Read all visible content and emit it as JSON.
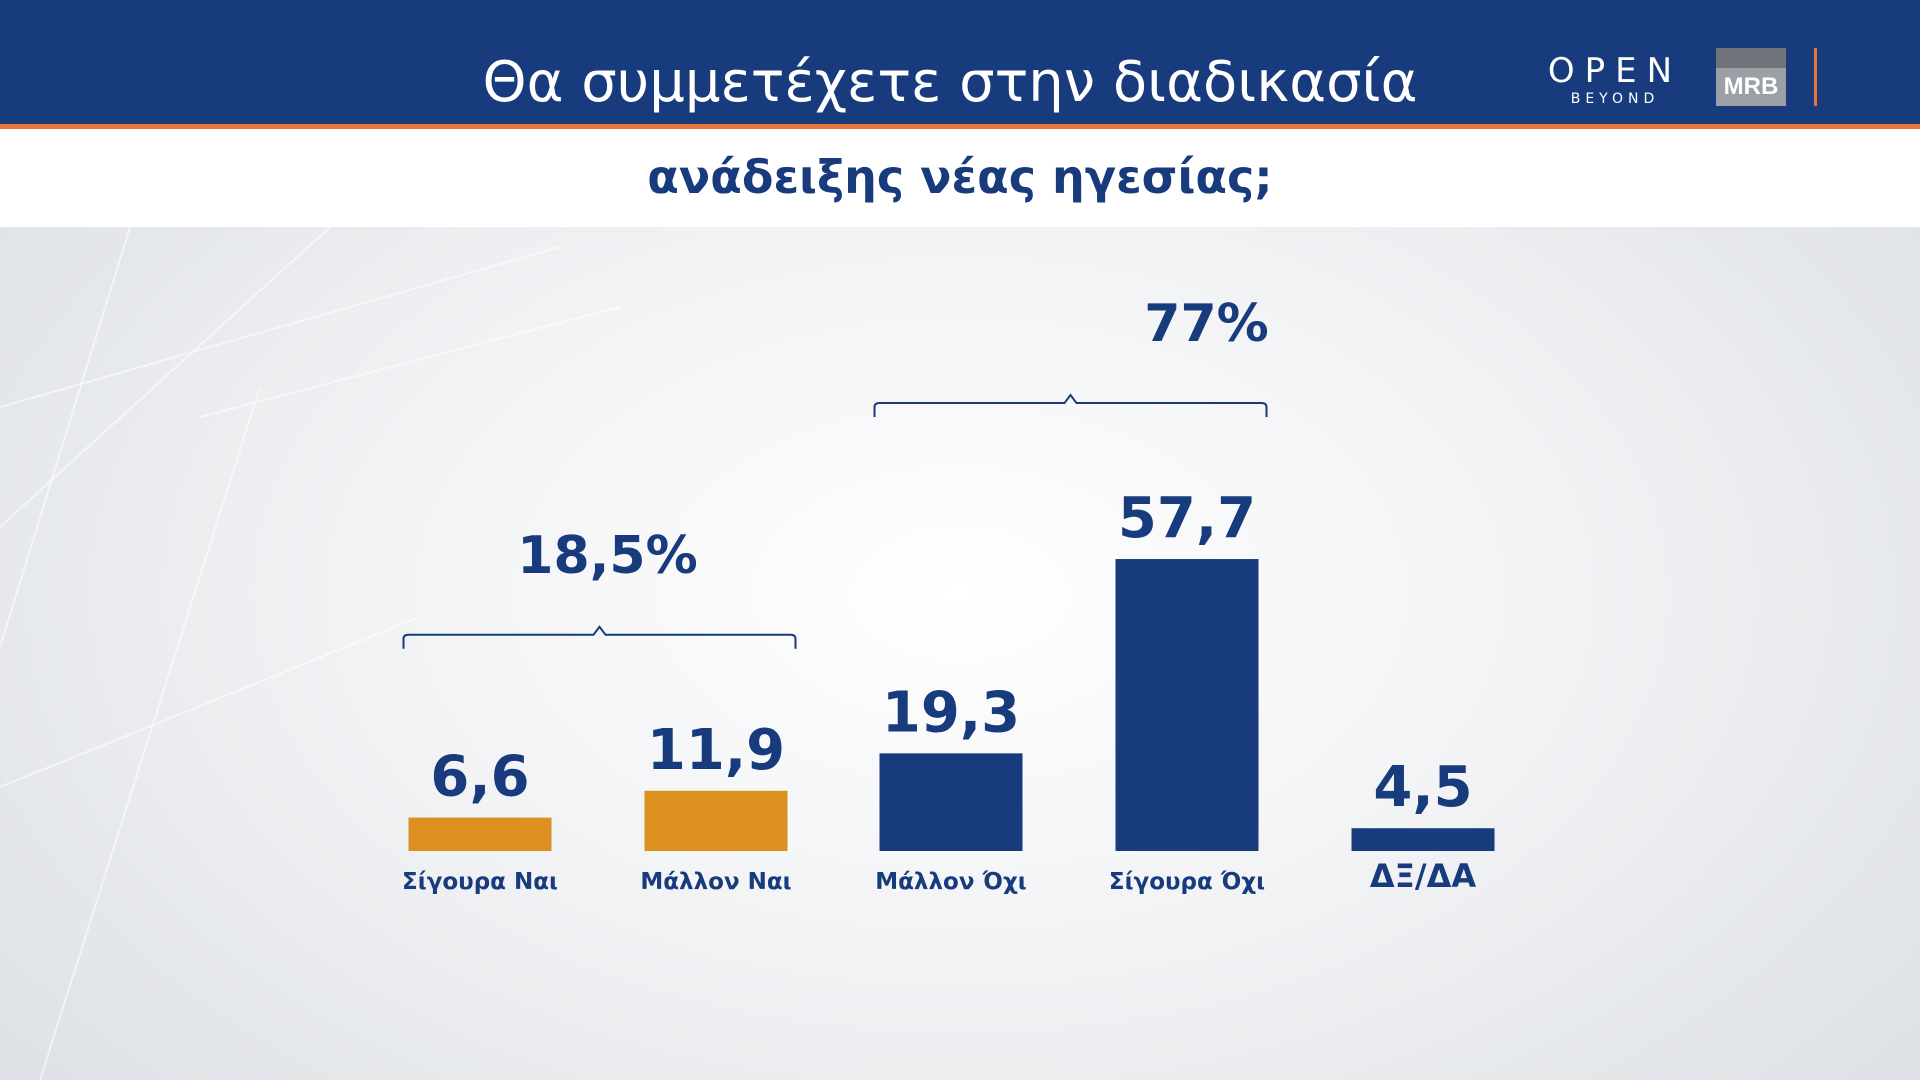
{
  "header": {
    "title_line1": "Θα συμμετέχετε στην διαδικασία",
    "title_line2": "ανάδειξης νέας ηγεσίας;"
  },
  "logos": {
    "open_word": "OPEN",
    "open_sub": "BEYOND",
    "mrb": "MRB"
  },
  "colors": {
    "header_bg": "#173b7c",
    "accent_stripe": "#e8743a",
    "yes_bar": "#dc901f",
    "no_bar": "#173b7c",
    "text": "#173b7c"
  },
  "chart_data": {
    "type": "bar",
    "title": "Θα συμμετέχετε στην διαδικασία ανάδειξης νέας ηγεσίας;",
    "categories": [
      "Σίγουρα Ναι",
      "Μάλλον Ναι",
      "Μάλλον Όχι",
      "Σίγουρα Όχι",
      "ΔΞ/ΔΑ"
    ],
    "values": [
      6.6,
      11.9,
      19.3,
      57.7,
      4.5
    ],
    "value_labels": [
      "6,6",
      "11,9",
      "19,3",
      "57,7",
      "4,5"
    ],
    "bar_colors": [
      "#dc901f",
      "#dc901f",
      "#173b7c",
      "#173b7c",
      "#173b7c"
    ],
    "groups": [
      {
        "label": "18,5%",
        "value": 18.5,
        "from": 0,
        "to": 1
      },
      {
        "label": "77%",
        "value": 77,
        "from": 2,
        "to": 3
      }
    ],
    "grid": false,
    "legend": "none"
  }
}
